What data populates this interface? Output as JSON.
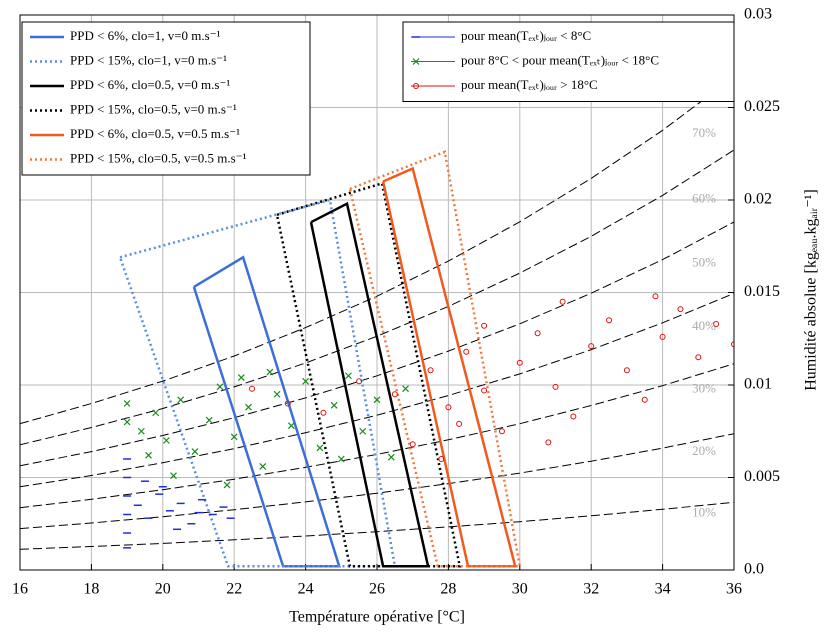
{
  "chart_data": {
    "type": "scatter",
    "xlabel": "Température opérative [°C]",
    "ylabel": "Humidité absolue [kgₑₐᵤ.kgₐᵢᵣ⁻¹]",
    "xlim": [
      16,
      36
    ],
    "xticks": [
      16,
      18,
      20,
      22,
      24,
      26,
      28,
      30,
      32,
      34,
      36
    ],
    "ylim": [
      0,
      0.03
    ],
    "yticks": [
      {
        "value": 0,
        "label": "0.0"
      },
      0.005,
      0.01,
      0.015,
      0.02,
      0.025,
      0.03
    ],
    "grid": true,
    "series": [
      {
        "type": "line",
        "name": "PPD < 6%, clo=1, v=0 m.s⁻¹",
        "color": "#3a6fd8",
        "dash": "solid",
        "x": [
          20.87,
          22.25,
          24.94,
          23.37,
          20.87
        ],
        "values": [
          0.0153,
          0.0169,
          0.0002,
          0.0002,
          0.0153
        ]
      },
      {
        "type": "line",
        "name": "PPD < 15%, clo=1, v=0 m.s⁻¹",
        "color": "#5a8ee0",
        "dash": "dotted",
        "x": [
          18.8,
          24.68,
          26.5,
          21.83,
          18.8
        ],
        "values": [
          0.0169,
          0.02,
          0.0002,
          0.0002,
          0.0169
        ]
      },
      {
        "type": "line",
        "name": "PPD < 6%, clo=0.5, v=0 m.s⁻¹",
        "color": "#000000",
        "dash": "solid",
        "x": [
          24.15,
          25.16,
          27.43,
          26.17,
          24.15
        ],
        "values": [
          0.0188,
          0.0198,
          0.0002,
          0.0002,
          0.0188
        ]
      },
      {
        "type": "line",
        "name": "PPD < 15%, clo=0.5, v=0 m.s⁻¹",
        "color": "#000000",
        "dash": "dotted",
        "x": [
          23.2,
          26.14,
          28.32,
          25.24,
          23.2
        ],
        "values": [
          0.0192,
          0.0209,
          0.0002,
          0.0002,
          0.0192
        ]
      },
      {
        "type": "line",
        "name": "PPD < 6%, clo=0.5, v=0.5 m.s⁻¹",
        "color": "#f05a1e",
        "dash": "solid",
        "x": [
          26.17,
          27.0,
          29.87,
          28.55,
          26.17
        ],
        "values": [
          0.021,
          0.0217,
          0.0002,
          0.0002,
          0.021
        ]
      },
      {
        "type": "line",
        "name": "PPD < 15%, clo=0.5, v=0.5 m.s⁻¹",
        "color": "#f07a3e",
        "dash": "dotted",
        "x": [
          25.24,
          27.9,
          30.0,
          27.7,
          25.24
        ],
        "values": [
          0.0206,
          0.0226,
          0.0002,
          0.0002,
          0.0206
        ]
      },
      {
        "type": "scatter",
        "name": "pour mean(Tₑₓₜ)ⱼₒᵤᵣ < 8°C",
        "color": "#1f2fd8",
        "marker": "dash",
        "x": [
          19,
          19,
          19,
          19,
          19,
          19,
          19.3,
          19.6,
          19.9,
          20.2,
          20.5,
          20.8,
          21.1,
          21.4,
          21.7,
          20,
          19.5,
          20.4,
          21,
          21.9
        ],
        "values": [
          0.0012,
          0.002,
          0.003,
          0.004,
          0.005,
          0.006,
          0.0035,
          0.0028,
          0.0041,
          0.0032,
          0.0036,
          0.0025,
          0.0038,
          0.003,
          0.0034,
          0.0045,
          0.0048,
          0.0022,
          0.0031,
          0.0028
        ]
      },
      {
        "type": "scatter",
        "name": "pour 8°C < pour mean(Tₑₓₜ)ⱼₒᵤᵣ < 18°C",
        "color": "#1a8a1a",
        "marker": "x",
        "x": [
          19,
          19,
          19.4,
          19.8,
          20.1,
          20.5,
          20.9,
          21.3,
          21.6,
          22,
          22.4,
          22.8,
          23.2,
          23.6,
          24,
          24.4,
          24.8,
          25.2,
          25.6,
          26,
          26.4,
          26.8,
          20.3,
          21.8,
          23,
          19.6,
          22.2,
          25
        ],
        "values": [
          0.008,
          0.009,
          0.0075,
          0.0085,
          0.007,
          0.0092,
          0.0064,
          0.0081,
          0.0099,
          0.0072,
          0.0088,
          0.0056,
          0.0095,
          0.0078,
          0.0102,
          0.0066,
          0.0089,
          0.0105,
          0.0075,
          0.0092,
          0.0061,
          0.0098,
          0.0051,
          0.0046,
          0.0107,
          0.0062,
          0.0104,
          0.006
        ]
      },
      {
        "type": "scatter",
        "name": "pour mean(Tₑₓₜ)ⱼₒᵤᵣ > 18°C",
        "color": "#e01010",
        "marker": "circle",
        "x": [
          22.5,
          23.5,
          24.5,
          25.5,
          26.5,
          27,
          27.5,
          28,
          28.5,
          29,
          29.5,
          30,
          30.5,
          31,
          31.5,
          32,
          32.5,
          33,
          33.5,
          34,
          34.5,
          35,
          35.5,
          36,
          27.8,
          29,
          31.2,
          33.8,
          28.3,
          30.8
        ],
        "values": [
          0.0098,
          0.009,
          0.0085,
          0.0102,
          0.0095,
          0.0068,
          0.0108,
          0.0088,
          0.0118,
          0.0097,
          0.0075,
          0.0112,
          0.0128,
          0.0099,
          0.0083,
          0.0121,
          0.0135,
          0.0108,
          0.0092,
          0.0126,
          0.0141,
          0.0115,
          0.0133,
          0.0122,
          0.006,
          0.0132,
          0.0145,
          0.0148,
          0.0079,
          0.0069
        ]
      }
    ],
    "rh_curves": [
      {
        "label": "10%",
        "x": [
          16,
          18,
          20,
          22,
          24,
          26,
          28,
          30,
          32,
          34,
          36
        ],
        "values": [
          0.00112,
          0.00127,
          0.00144,
          0.00163,
          0.00184,
          0.00207,
          0.00233,
          0.00261,
          0.00293,
          0.00328,
          0.00366
        ]
      },
      {
        "label": "20%",
        "x": [
          16,
          18,
          20,
          22,
          24,
          26,
          28,
          30,
          32,
          34,
          36
        ],
        "values": [
          0.00224,
          0.00254,
          0.00288,
          0.00326,
          0.00368,
          0.00415,
          0.00467,
          0.00524,
          0.00588,
          0.00659,
          0.00737
        ]
      },
      {
        "label": "30%",
        "x": [
          16,
          18,
          20,
          22,
          24,
          26,
          28,
          30,
          32,
          34,
          36
        ],
        "values": [
          0.00337,
          0.00382,
          0.00434,
          0.00491,
          0.00555,
          0.00625,
          0.00704,
          0.00791,
          0.00889,
          0.00996,
          0.01115
        ]
      },
      {
        "label": "40%",
        "x": [
          16,
          18,
          20,
          22,
          24,
          26,
          28,
          30,
          32,
          34,
          36
        ],
        "values": [
          0.0045,
          0.00511,
          0.0058,
          0.00656,
          0.00742,
          0.00837,
          0.00943,
          0.0106,
          0.01191,
          0.01336,
          0.01495
        ]
      },
      {
        "label": "50%",
        "x": [
          16,
          18,
          20,
          22,
          24,
          26,
          28,
          30,
          32,
          34,
          36
        ],
        "values": [
          0.00563,
          0.0064,
          0.00727,
          0.00823,
          0.0093,
          0.0105,
          0.01183,
          0.01331,
          0.01496,
          0.01678,
          0.01881
        ]
      },
      {
        "label": "60%",
        "x": [
          16,
          18,
          20,
          22,
          24,
          26,
          28,
          30,
          32,
          34,
          36
        ],
        "values": [
          0.00677,
          0.0077,
          0.00873,
          0.0099,
          0.01119,
          0.01264,
          0.01425,
          0.01605,
          0.01804,
          0.02025,
          0.0227
        ]
      },
      {
        "label": "70%",
        "x": [
          16,
          18,
          20,
          22,
          24,
          26,
          28,
          30,
          32,
          34,
          36
        ],
        "values": [
          0.00791,
          0.009,
          0.01021,
          0.01157,
          0.0131,
          0.0148,
          0.0167,
          0.01882,
          0.02117,
          0.02377,
          0.02666
        ]
      }
    ]
  }
}
